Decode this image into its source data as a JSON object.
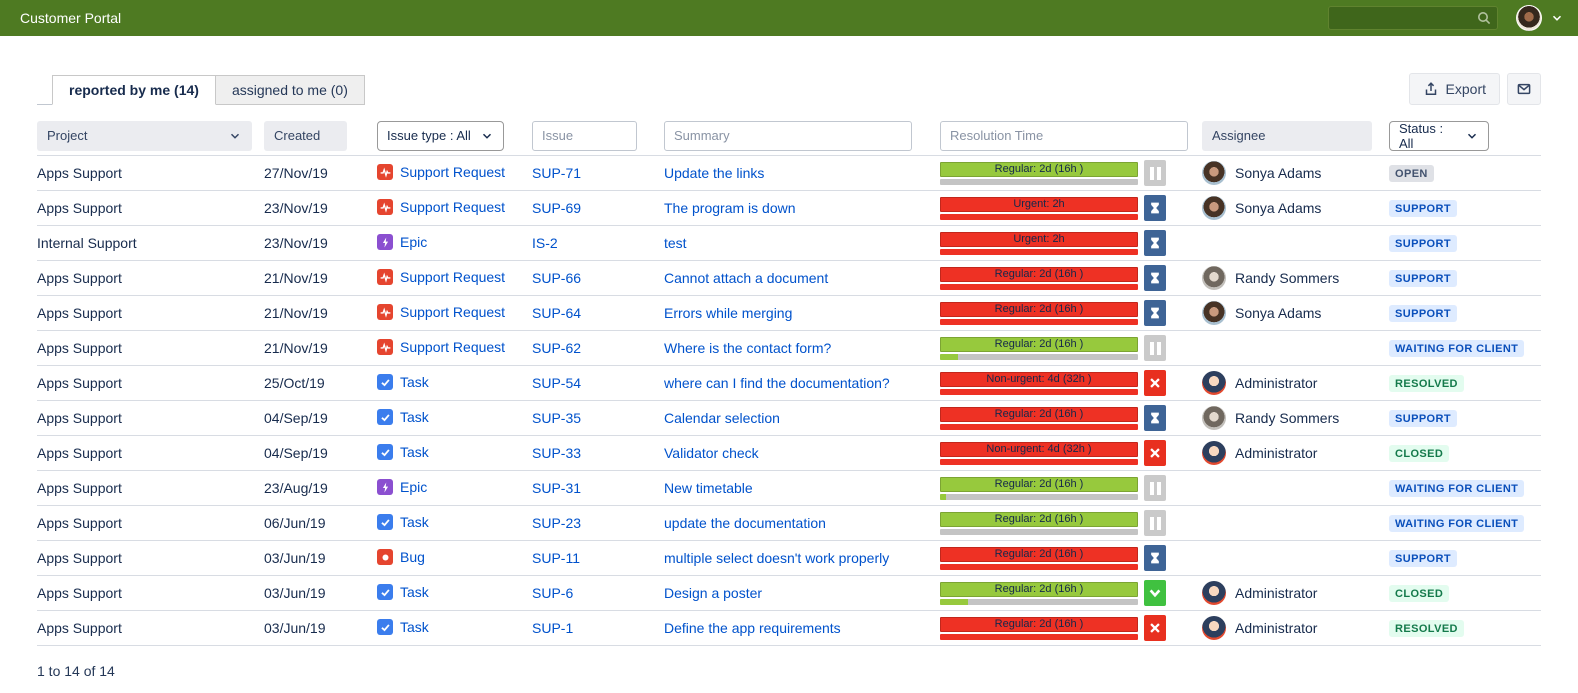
{
  "topbar": {
    "title": "Customer Portal",
    "search_value": ""
  },
  "tabs": [
    {
      "label": "reported by me (14)",
      "active": true
    },
    {
      "label": "assigned to me (0)",
      "active": false
    }
  ],
  "toolbar": {
    "export_label": "Export"
  },
  "filters": {
    "project_label": "Project",
    "created_label": "Created",
    "issue_type_label": "Issue type : All",
    "issue_placeholder": "Issue",
    "summary_placeholder": "Summary",
    "resolution_placeholder": "Resolution Time",
    "assignee_label": "Assignee",
    "status_label": "Status : All"
  },
  "colors": {
    "topbar_green": "#4e7a22",
    "link_blue": "#0052CC",
    "sla_ok_green": "#97c93d",
    "sla_overdue_red": "#ee3124",
    "sla_sub_gray": "#c4c4c4",
    "icon_paused_gray": "#cacaca",
    "icon_running_blue": "#3e6496",
    "icon_breached_red": "#e8301f",
    "icon_met_green": "#40c140",
    "type_support_bug": "#e5452f",
    "type_task_blue": "#3b7ded",
    "type_epic_purple": "#8b4fd0",
    "badge_gray_bg": "#dfe1e6",
    "badge_blue_bg": "#deebff",
    "badge_green_bg": "#e3fcef"
  },
  "rows": [
    {
      "project": "Apps Support",
      "created": "27/Nov/19",
      "type": "Support Request",
      "key": "SUP-71",
      "summary": "Update the links",
      "sla_label": "Regular: 2d (16h )",
      "sla_state": "ok",
      "sla_sub_fill": 0,
      "sla_icon": "paused",
      "assignee": "Sonya Adams",
      "avatar": "sonya",
      "status": "OPEN",
      "status_color": "gray"
    },
    {
      "project": "Apps Support",
      "created": "23/Nov/19",
      "type": "Support Request",
      "key": "SUP-69",
      "summary": "The program is down",
      "sla_label": "Urgent: 2h",
      "sla_state": "overdue",
      "sla_sub_fill": 100,
      "sla_icon": "running",
      "assignee": "Sonya Adams",
      "avatar": "sonya",
      "status": "SUPPORT",
      "status_color": "blue"
    },
    {
      "project": "Internal Support",
      "created": "23/Nov/19",
      "type": "Epic",
      "key": "IS-2",
      "summary": "test",
      "sla_label": "Urgent: 2h",
      "sla_state": "overdue",
      "sla_sub_fill": 100,
      "sla_icon": "running",
      "assignee": "",
      "avatar": "",
      "status": "SUPPORT",
      "status_color": "blue"
    },
    {
      "project": "Apps Support",
      "created": "21/Nov/19",
      "type": "Support Request",
      "key": "SUP-66",
      "summary": "Cannot attach a document",
      "sla_label": "Regular: 2d (16h )",
      "sla_state": "overdue",
      "sla_sub_fill": 100,
      "sla_icon": "running",
      "assignee": "Randy Sommers",
      "avatar": "randy",
      "status": "SUPPORT",
      "status_color": "blue"
    },
    {
      "project": "Apps Support",
      "created": "21/Nov/19",
      "type": "Support Request",
      "key": "SUP-64",
      "summary": "Errors while merging",
      "sla_label": "Regular: 2d (16h )",
      "sla_state": "overdue",
      "sla_sub_fill": 100,
      "sla_icon": "running",
      "assignee": "Sonya Adams",
      "avatar": "sonya",
      "status": "SUPPORT",
      "status_color": "blue"
    },
    {
      "project": "Apps Support",
      "created": "21/Nov/19",
      "type": "Support Request",
      "key": "SUP-62",
      "summary": "Where is the contact form?",
      "sla_label": "Regular: 2d (16h )",
      "sla_state": "ok",
      "sla_sub_fill": 9,
      "sla_icon": "paused",
      "assignee": "",
      "avatar": "",
      "status": "WAITING FOR CLIENT",
      "status_color": "blue"
    },
    {
      "project": "Apps Support",
      "created": "25/Oct/19",
      "type": "Task",
      "key": "SUP-54",
      "summary": "where can I find the documentation?",
      "sla_label": "Non-urgent: 4d (32h )",
      "sla_state": "overdue",
      "sla_sub_fill": 100,
      "sla_icon": "breached",
      "assignee": "Administrator",
      "avatar": "admin",
      "status": "RESOLVED",
      "status_color": "green"
    },
    {
      "project": "Apps Support",
      "created": "04/Sep/19",
      "type": "Task",
      "key": "SUP-35",
      "summary": "Calendar selection",
      "sla_label": "Regular: 2d (16h )",
      "sla_state": "overdue",
      "sla_sub_fill": 100,
      "sla_icon": "running",
      "assignee": "Randy Sommers",
      "avatar": "randy",
      "status": "SUPPORT",
      "status_color": "blue"
    },
    {
      "project": "Apps Support",
      "created": "04/Sep/19",
      "type": "Task",
      "key": "SUP-33",
      "summary": "Validator check",
      "sla_label": "Non-urgent: 4d (32h )",
      "sla_state": "overdue",
      "sla_sub_fill": 100,
      "sla_icon": "breached",
      "assignee": "Administrator",
      "avatar": "admin",
      "status": "CLOSED",
      "status_color": "green"
    },
    {
      "project": "Apps Support",
      "created": "23/Aug/19",
      "type": "Epic",
      "key": "SUP-31",
      "summary": "New timetable",
      "sla_label": "Regular: 2d (16h )",
      "sla_state": "ok",
      "sla_sub_fill": 3,
      "sla_icon": "paused",
      "assignee": "",
      "avatar": "",
      "status": "WAITING FOR CLIENT",
      "status_color": "blue"
    },
    {
      "project": "Apps Support",
      "created": "06/Jun/19",
      "type": "Task",
      "key": "SUP-23",
      "summary": "update the documentation",
      "sla_label": "Regular: 2d (16h )",
      "sla_state": "ok",
      "sla_sub_fill": 0,
      "sla_icon": "paused",
      "assignee": "",
      "avatar": "",
      "status": "WAITING FOR CLIENT",
      "status_color": "blue"
    },
    {
      "project": "Apps Support",
      "created": "03/Jun/19",
      "type": "Bug",
      "key": "SUP-11",
      "summary": "multiple select doesn't work properly",
      "sla_label": "Regular: 2d (16h )",
      "sla_state": "overdue",
      "sla_sub_fill": 100,
      "sla_icon": "running",
      "assignee": "",
      "avatar": "",
      "status": "SUPPORT",
      "status_color": "blue"
    },
    {
      "project": "Apps Support",
      "created": "03/Jun/19",
      "type": "Task",
      "key": "SUP-6",
      "summary": "Design a poster",
      "sla_label": "Regular: 2d (16h )",
      "sla_state": "ok",
      "sla_sub_fill": 14,
      "sla_icon": "met",
      "assignee": "Administrator",
      "avatar": "admin",
      "status": "CLOSED",
      "status_color": "green"
    },
    {
      "project": "Apps Support",
      "created": "03/Jun/19",
      "type": "Task",
      "key": "SUP-1",
      "summary": "Define the app requirements",
      "sla_label": "Regular: 2d (16h )",
      "sla_state": "overdue",
      "sla_sub_fill": 100,
      "sla_icon": "breached",
      "assignee": "Administrator",
      "avatar": "admin",
      "status": "RESOLVED",
      "status_color": "green"
    }
  ],
  "footer": {
    "count_text": "1 to 14 of 14"
  }
}
